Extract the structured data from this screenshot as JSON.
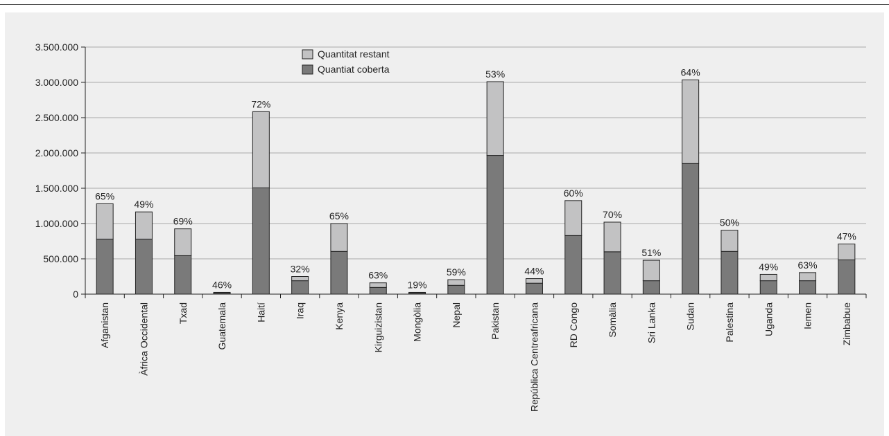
{
  "colors": {
    "covered": "#7a7a7a",
    "remaining": "#c2c2c3",
    "panel": "#efefef",
    "grid": "#aaaaaa"
  },
  "chart_data": {
    "type": "bar",
    "stacked": true,
    "categories": [
      "Afganistan",
      "Àfrica Occidental",
      "Txad",
      "Guatemala",
      "Haití",
      "Iraq",
      "Kenya",
      "Kirguizistan",
      "Mongòlia",
      "Nepal",
      "Pakistan",
      "República Centreafricana",
      "RD Congo",
      "Somàlia",
      "Sri Lanka",
      "Sudan",
      "Palestina",
      "Uganda",
      "Iemen",
      "Zimbabue"
    ],
    "series": [
      {
        "name": "Quantiat coberta",
        "values": [
          780000,
          780000,
          545000,
          15000,
          1505000,
          190000,
          605000,
          95000,
          15000,
          125000,
          1965000,
          155000,
          830000,
          600000,
          190000,
          1850000,
          605000,
          190000,
          190000,
          485000
        ]
      },
      {
        "name": "Quantitat restant",
        "values": [
          500000,
          385000,
          380000,
          10000,
          1080000,
          60000,
          395000,
          65000,
          10000,
          80000,
          1045000,
          65000,
          495000,
          420000,
          290000,
          1185000,
          300000,
          90000,
          115000,
          225000
        ]
      }
    ],
    "data_labels": [
      "65%",
      "49%",
      "69%",
      "46%",
      "72%",
      "32%",
      "65%",
      "63%",
      "19%",
      "59%",
      "53%",
      "44%",
      "60%",
      "70%",
      "51%",
      "64%",
      "50%",
      "49%",
      "63%",
      "47%"
    ],
    "ylim": [
      0,
      3500000
    ],
    "yticks": [
      0,
      500000,
      1000000,
      1500000,
      2000000,
      2500000,
      3000000,
      3500000
    ],
    "ytick_labels": [
      "0",
      "500.000",
      "1.000.000",
      "1.500.000",
      "2.000.000",
      "2.500.000",
      "3.000.000",
      "3.500.000"
    ],
    "grid": true,
    "legend": {
      "position": "top-center",
      "entries": [
        "Quantitat restant",
        "Quantiat coberta"
      ]
    }
  }
}
